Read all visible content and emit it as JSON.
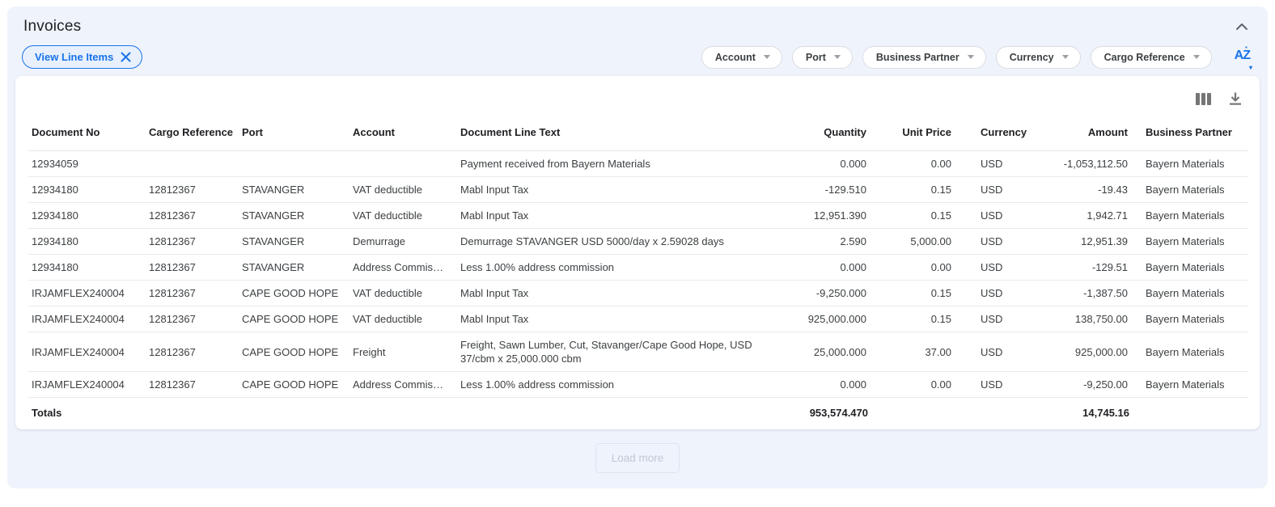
{
  "panel": {
    "title": "Invoices"
  },
  "view_chip": {
    "label": "View Line Items"
  },
  "filters": [
    {
      "label": "Account"
    },
    {
      "label": "Port"
    },
    {
      "label": "Business Partner"
    },
    {
      "label": "Currency"
    },
    {
      "label": "Cargo Reference"
    }
  ],
  "icons": {
    "sort_alpha": "AZ",
    "collapse": "chevron-up",
    "view_columns": "columns",
    "download": "download"
  },
  "table": {
    "columns": [
      {
        "label": "Document No",
        "align": "left"
      },
      {
        "label": "Cargo Reference",
        "align": "left"
      },
      {
        "label": "Port",
        "align": "left"
      },
      {
        "label": "Account",
        "align": "left"
      },
      {
        "label": "Document Line Text",
        "align": "left"
      },
      {
        "label": "Quantity",
        "align": "right"
      },
      {
        "label": "Unit Price",
        "align": "right"
      },
      {
        "label": "Currency",
        "align": "left"
      },
      {
        "label": "Amount",
        "align": "right"
      },
      {
        "label": "Business Partner",
        "align": "left"
      }
    ],
    "rows": [
      [
        "12934059",
        "",
        "",
        "",
        "Payment received from Bayern Materials",
        "0.000",
        "0.00",
        "USD",
        "-1,053,112.50",
        "Bayern Materials"
      ],
      [
        "12934180",
        "12812367",
        "STAVANGER",
        "VAT deductible",
        "Mabl Input Tax",
        "-129.510",
        "0.15",
        "USD",
        "-19.43",
        "Bayern Materials"
      ],
      [
        "12934180",
        "12812367",
        "STAVANGER",
        "VAT deductible",
        "Mabl Input Tax",
        "12,951.390",
        "0.15",
        "USD",
        "1,942.71",
        "Bayern Materials"
      ],
      [
        "12934180",
        "12812367",
        "STAVANGER",
        "Demurrage",
        "Demurrage STAVANGER USD 5000/day x 2.59028 days",
        "2.590",
        "5,000.00",
        "USD",
        "12,951.39",
        "Bayern Materials"
      ],
      [
        "12934180",
        "12812367",
        "STAVANGER",
        "Address Commis…",
        "Less 1.00% address commission",
        "0.000",
        "0.00",
        "USD",
        "-129.51",
        "Bayern Materials"
      ],
      [
        "IRJAMFLEX240004",
        "12812367",
        "CAPE GOOD HOPE",
        "VAT deductible",
        "Mabl Input Tax",
        "-9,250.000",
        "0.15",
        "USD",
        "-1,387.50",
        "Bayern Materials"
      ],
      [
        "IRJAMFLEX240004",
        "12812367",
        "CAPE GOOD HOPE",
        "VAT deductible",
        "Mabl Input Tax",
        "925,000.000",
        "0.15",
        "USD",
        "138,750.00",
        "Bayern Materials"
      ],
      [
        "IRJAMFLEX240004",
        "12812367",
        "CAPE GOOD HOPE",
        "Freight",
        "Freight, Sawn Lumber, Cut, Stavanger/Cape Good Hope, USD 37/cbm x 25,000.000 cbm",
        "25,000.000",
        "37.00",
        "USD",
        "925,000.00",
        "Bayern Materials"
      ],
      [
        "IRJAMFLEX240004",
        "12812367",
        "CAPE GOOD HOPE",
        "Address Commis…",
        "Less 1.00% address commission",
        "0.000",
        "0.00",
        "USD",
        "-9,250.00",
        "Bayern Materials"
      ]
    ],
    "totals": {
      "label": "Totals",
      "quantity": "953,574.470",
      "amount": "14,745.16"
    }
  },
  "load_more": {
    "label": "Load more"
  },
  "colors": {
    "accent_blue": "#1a73e8",
    "panel_bg": "#eff3fc",
    "card_bg": "#ffffff",
    "text": "#202124",
    "muted_text": "#5f6368",
    "row_border": "#e9eaee"
  }
}
